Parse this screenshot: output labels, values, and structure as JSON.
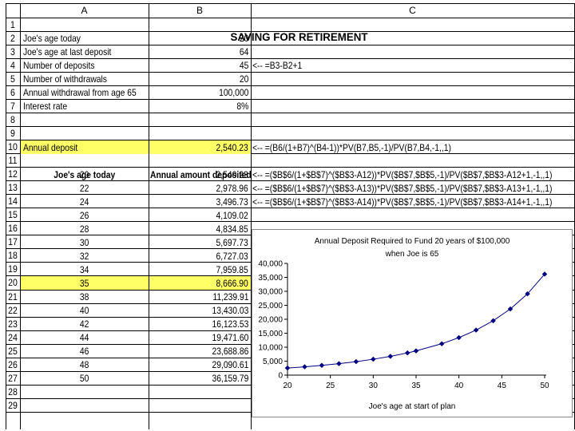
{
  "columns": [
    "A",
    "B",
    "C"
  ],
  "title": "SAVING FOR RETIREMENT",
  "rows": [
    "1",
    "2",
    "3",
    "4",
    "5",
    "6",
    "7",
    "8",
    "9",
    "10",
    "11",
    "12",
    "13",
    "14",
    "15",
    "16",
    "17",
    "18",
    "19",
    "20",
    "21",
    "22",
    "23",
    "24",
    "25",
    "26",
    "27",
    "28",
    "29"
  ],
  "inputs": [
    {
      "label": "Joe's age today",
      "value": "20",
      "note": ""
    },
    {
      "label": "Joe's age at last deposit",
      "value": "64",
      "note": ""
    },
    {
      "label": "Number of deposits",
      "value": "45",
      "note": "<-- =B3-B2+1"
    },
    {
      "label": "Number of withdrawals",
      "value": "20",
      "note": ""
    },
    {
      "label": "Annual withdrawal from age 65",
      "value": "100,000",
      "note": ""
    },
    {
      "label": "Interest rate",
      "value": "8%",
      "note": ""
    }
  ],
  "annual_deposit": {
    "label": "Annual deposit",
    "value": "2,540.23",
    "formula": "<-- =(B6/(1+B7)^(B4-1))*PV(B7,B5,-1)/PV(B7,B4,-1,,1)"
  },
  "table": {
    "header_age": "Joe's age today",
    "header_amount": "Annual amount deposited",
    "rows": [
      {
        "age": "20",
        "amount": "2,540.23",
        "formula": "<-- =($B$6/(1+$B$7)^($B$3-A12))*PV($B$7,$B$5,-1)/PV($B$7,$B$3-A12+1,-1,,1)"
      },
      {
        "age": "22",
        "amount": "2,978.96",
        "formula": "<-- =($B$6/(1+$B$7)^($B$3-A13))*PV($B$7,$B$5,-1)/PV($B$7,$B$3-A13+1,-1,,1)"
      },
      {
        "age": "24",
        "amount": "3,496.73",
        "formula": "<-- =($B$6/(1+$B$7)^($B$3-A14))*PV($B$7,$B$5,-1)/PV($B$7,$B$3-A14+1,-1,,1)"
      },
      {
        "age": "26",
        "amount": "4,109.02",
        "formula": ""
      },
      {
        "age": "28",
        "amount": "4,834.85",
        "formula": ""
      },
      {
        "age": "30",
        "amount": "5,697.73",
        "formula": ""
      },
      {
        "age": "32",
        "amount": "6,727.03",
        "formula": ""
      },
      {
        "age": "34",
        "amount": "7,959.85",
        "formula": ""
      },
      {
        "age": "35",
        "amount": "8,666.90",
        "formula": ""
      },
      {
        "age": "38",
        "amount": "11,239.91",
        "formula": ""
      },
      {
        "age": "40",
        "amount": "13,430.03",
        "formula": ""
      },
      {
        "age": "42",
        "amount": "16,123.53",
        "formula": ""
      },
      {
        "age": "44",
        "amount": "19,471.60",
        "formula": ""
      },
      {
        "age": "46",
        "amount": "23,688.86",
        "formula": ""
      },
      {
        "age": "48",
        "amount": "29,090.61",
        "formula": ""
      },
      {
        "age": "50",
        "amount": "36,159.79",
        "formula": ""
      }
    ]
  },
  "highlight_color": "#ffff66",
  "chart_data": {
    "type": "scatter",
    "title_line1": "Annual Deposit Required to Fund 20 years of $100,000",
    "title_line2": "when Joe is 65",
    "xlabel": "Joe's age at start of plan",
    "ylabel": "",
    "xlim": [
      20,
      50
    ],
    "ylim": [
      0,
      40000
    ],
    "x_ticks": [
      20,
      25,
      30,
      35,
      40,
      45,
      50
    ],
    "y_tick_labels": [
      "0",
      "5,000",
      "10,000",
      "15,000",
      "20,000",
      "25,000",
      "30,000",
      "35,000",
      "40,000"
    ],
    "x": [
      20,
      22,
      24,
      26,
      28,
      30,
      32,
      34,
      35,
      38,
      40,
      42,
      44,
      46,
      48,
      50
    ],
    "y": [
      2540.23,
      2978.96,
      3496.73,
      4109.02,
      4834.85,
      5697.73,
      6727.03,
      7959.85,
      8666.9,
      11239.91,
      13430.03,
      16123.53,
      19471.6,
      23688.86,
      29090.61,
      36159.79
    ],
    "line_color": "#000080",
    "marker": "diamond",
    "grid": false,
    "legend": "none"
  }
}
